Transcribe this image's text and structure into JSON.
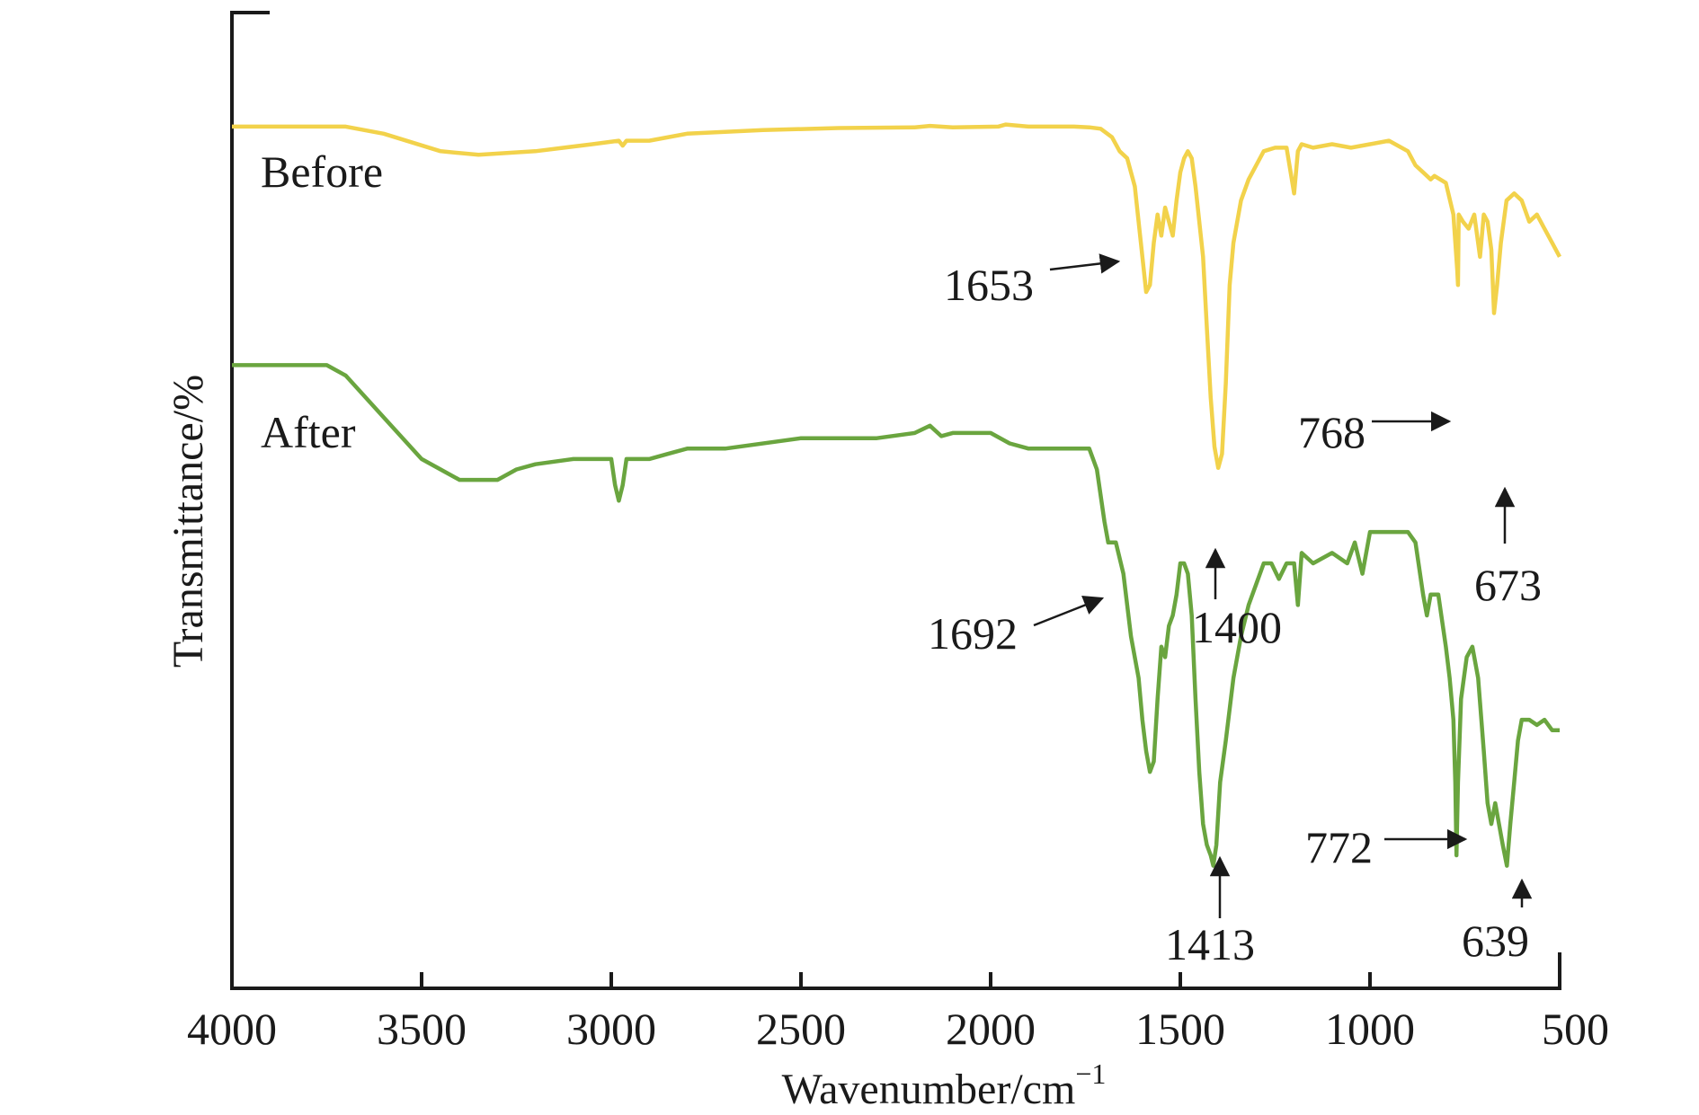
{
  "chart_data": {
    "type": "line",
    "title": "",
    "xlabel": "Wavenumber/cm",
    "xlabel_superscript": "−1",
    "ylabel": "Transmittance/%",
    "xlim": [
      4000,
      500
    ],
    "x_reversed": true,
    "y_ticks_shown": false,
    "grid": false,
    "legend": "inline labels",
    "x_ticks": [
      4000,
      3500,
      3000,
      2500,
      2000,
      1500,
      1000,
      500
    ],
    "colors": {
      "before": "#f2d24b",
      "after": "#6aa53f",
      "axis": "#1a1a1a"
    },
    "series": [
      {
        "name": "Before",
        "x": [
          4000,
          3700,
          3600,
          3450,
          3350,
          3200,
          3050,
          2980,
          2970,
          2960,
          2900,
          2800,
          2600,
          2400,
          2200,
          2160,
          2100,
          1980,
          1960,
          1900,
          1780,
          1740,
          1710,
          1680,
          1660,
          1640,
          1620,
          1610,
          1600,
          1590,
          1580,
          1570,
          1560,
          1550,
          1540,
          1520,
          1510,
          1500,
          1490,
          1480,
          1470,
          1460,
          1440,
          1430,
          1420,
          1410,
          1400,
          1390,
          1380,
          1370,
          1360,
          1340,
          1320,
          1300,
          1280,
          1250,
          1220,
          1200,
          1190,
          1180,
          1150,
          1100,
          1050,
          1000,
          950,
          900,
          880,
          860,
          840,
          830,
          800,
          780,
          770,
          768,
          766,
          755,
          740,
          725,
          710,
          700,
          690,
          680,
          673,
          665,
          655,
          640,
          620,
          600,
          580,
          560,
          540,
          520,
          500
        ],
        "y": [
          98.5,
          98.5,
          97.5,
          95,
          94.5,
          95,
          96,
          96.5,
          95.8,
          96.5,
          96.5,
          97.5,
          98,
          98.3,
          98.4,
          98.6,
          98.4,
          98.5,
          98.8,
          98.5,
          98.5,
          98.4,
          98.2,
          97,
          95,
          94,
          90,
          85,
          80,
          75,
          76,
          82,
          86,
          83,
          87,
          83,
          88,
          92,
          94,
          95,
          94,
          90,
          80,
          70,
          60,
          53,
          50,
          52,
          62,
          76,
          82,
          88,
          91,
          93,
          95,
          95.5,
          95.5,
          89,
          95,
          96,
          95.5,
          96,
          95.5,
          96,
          96.5,
          95,
          93,
          92,
          91,
          91.5,
          90.5,
          86,
          78,
          76,
          86,
          85,
          84,
          86,
          80,
          86,
          85,
          81,
          72,
          76,
          82,
          88,
          89,
          88,
          85,
          86,
          84,
          82,
          80
        ]
      },
      {
        "name": "After",
        "x": [
          4000,
          3750,
          3700,
          3600,
          3500,
          3450,
          3400,
          3350,
          3300,
          3250,
          3200,
          3100,
          3000,
          2990,
          2980,
          2970,
          2960,
          2950,
          2900,
          2850,
          2800,
          2700,
          2500,
          2300,
          2200,
          2160,
          2130,
          2100,
          2000,
          1950,
          1900,
          1800,
          1740,
          1720,
          1700,
          1690,
          1670,
          1650,
          1630,
          1610,
          1600,
          1590,
          1580,
          1570,
          1560,
          1550,
          1540,
          1530,
          1520,
          1510,
          1500,
          1490,
          1480,
          1470,
          1460,
          1450,
          1440,
          1430,
          1420,
          1413,
          1405,
          1395,
          1380,
          1360,
          1340,
          1320,
          1300,
          1280,
          1260,
          1240,
          1220,
          1200,
          1190,
          1180,
          1150,
          1100,
          1060,
          1040,
          1020,
          1000,
          950,
          900,
          880,
          860,
          850,
          840,
          820,
          800,
          790,
          780,
          775,
          772,
          768,
          760,
          745,
          730,
          715,
          700,
          690,
          680,
          670,
          660,
          650,
          639,
          630,
          620,
          610,
          600,
          580,
          560,
          540,
          520,
          500
        ],
        "y": [
          92,
          92,
          91,
          87,
          83,
          82,
          81,
          81,
          81,
          82,
          82.5,
          83,
          83,
          80.5,
          79,
          80.5,
          83,
          83,
          83,
          83.5,
          84,
          84,
          85,
          85,
          85.5,
          86.2,
          85.2,
          85.5,
          85.5,
          84.5,
          84,
          84,
          84,
          82,
          77,
          75,
          75,
          72,
          66,
          62,
          58,
          55,
          53,
          54,
          60,
          65,
          64,
          67,
          68,
          70,
          73,
          73,
          72,
          68,
          60,
          53,
          48,
          46,
          45,
          44,
          46,
          52,
          56,
          62,
          66,
          69,
          71,
          73,
          73,
          71.5,
          73,
          73,
          69,
          74,
          73,
          74,
          73,
          75,
          72,
          76,
          76,
          76,
          75,
          70,
          68,
          70,
          70,
          65,
          62,
          58,
          52,
          45,
          52,
          60,
          64,
          65,
          62,
          55,
          50,
          48,
          50,
          48,
          46,
          44,
          48,
          52,
          56,
          58,
          58,
          57.5,
          58,
          57,
          57
        ]
      }
    ],
    "annotations": [
      {
        "label": "1653",
        "series": "Before",
        "x": 1653
      },
      {
        "label": "768",
        "series": "Before",
        "x": 768
      },
      {
        "label": "1400",
        "series": "Before",
        "x": 1400
      },
      {
        "label": "673",
        "series": "Before",
        "x": 673
      },
      {
        "label": "1692",
        "series": "After",
        "x": 1692
      },
      {
        "label": "1413",
        "series": "After",
        "x": 1413
      },
      {
        "label": "772",
        "series": "After",
        "x": 772
      },
      {
        "label": "639",
        "series": "After",
        "x": 639
      }
    ]
  }
}
